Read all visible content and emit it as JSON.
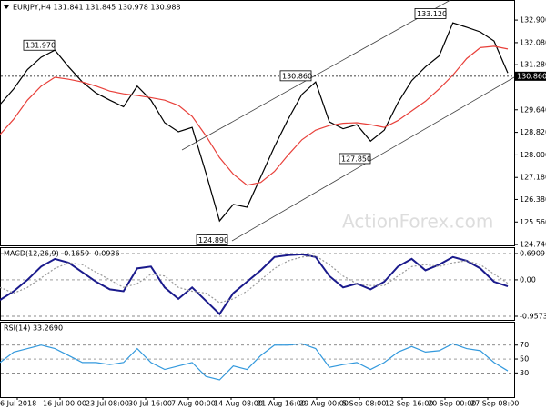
{
  "chart_data": [
    {
      "type": "line",
      "title": "EURJPY,H4 131.841 131.845 130.978 130.988",
      "ylim": [
        124.71,
        133.63
      ],
      "yticks": [
        {
          "value": 132.9,
          "label": "132.900"
        },
        {
          "value": 132.08,
          "label": "132.080"
        },
        {
          "value": 131.28,
          "label": "131.280"
        },
        {
          "value": 129.64,
          "label": "129.640"
        },
        {
          "value": 128.82,
          "label": "128.820"
        },
        {
          "value": 128.0,
          "label": "128.000"
        },
        {
          "value": 127.18,
          "label": "127.180"
        },
        {
          "value": 126.38,
          "label": "126.380"
        },
        {
          "value": 125.56,
          "label": "125.560"
        },
        {
          "value": 124.74,
          "label": "124.740"
        }
      ],
      "price_line": {
        "value": 130.86,
        "label": "130.860"
      },
      "annotations": [
        {
          "value": 131.97,
          "label": "131.970"
        },
        {
          "value": 130.86,
          "label": "130.860"
        },
        {
          "value": 133.12,
          "label": "133.120"
        },
        {
          "value": 127.85,
          "label": "127.850"
        },
        {
          "value": 124.89,
          "label": "124.890"
        }
      ],
      "watermark": "ActionForex.com",
      "x_axis_labels": [
        "6 Jul 2018",
        "16 Jul 00:00",
        "23 Jul 08:00",
        "30 Jul 16:00",
        "7 Aug 00:00",
        "14 Aug 08:00",
        "21 Aug 16:00",
        "29 Aug 00:00",
        "5 Sep 08:00",
        "12 Sep 16:00",
        "20 Sep 00:00",
        "27 Sep 08:00"
      ],
      "series": [
        {
          "name": "EURJPY",
          "color": "#000000",
          "values": [
            129.83,
            130.4,
            131.1,
            131.55,
            131.81,
            131.2,
            130.65,
            130.25,
            129.99,
            129.75,
            130.5,
            129.99,
            129.17,
            128.84,
            129.0,
            127.35,
            125.6,
            126.2,
            126.1,
            127.2,
            128.3,
            129.3,
            130.2,
            130.65,
            129.2,
            128.95,
            129.1,
            128.5,
            128.9,
            129.9,
            130.7,
            131.2,
            131.6,
            132.8,
            132.64,
            132.47,
            132.14,
            130.98
          ]
        },
        {
          "name": "MA",
          "color": "#e8403a",
          "values": [
            128.74,
            129.3,
            129.99,
            130.5,
            130.82,
            130.75,
            130.65,
            130.5,
            130.32,
            130.22,
            130.16,
            130.08,
            129.99,
            129.8,
            129.4,
            128.7,
            127.9,
            127.3,
            126.9,
            127.0,
            127.4,
            128.0,
            128.55,
            128.9,
            129.07,
            129.15,
            129.17,
            129.1,
            129.0,
            129.25,
            129.6,
            129.95,
            130.4,
            130.9,
            131.5,
            131.9,
            131.95,
            131.85
          ]
        }
      ]
    },
    {
      "type": "line",
      "title": "MACD(12,26,9) -0.1659 -0.0936",
      "ylim": [
        -1.053,
        0.858
      ],
      "yticks": [
        0.6909,
        {
          "value": 0,
          "label": "0.00"
        },
        -0.9573
      ],
      "series": [
        {
          "name": "MACD",
          "color": "#1a1a8c",
          "values": [
            -0.53,
            -0.3,
            0.0,
            0.35,
            0.55,
            0.45,
            0.2,
            -0.05,
            -0.25,
            -0.3,
            0.3,
            0.35,
            -0.2,
            -0.5,
            -0.2,
            -0.55,
            -0.9,
            -0.35,
            -0.05,
            0.25,
            0.6,
            0.65,
            0.67,
            0.6,
            0.1,
            -0.2,
            -0.1,
            -0.25,
            -0.05,
            0.35,
            0.55,
            0.25,
            0.4,
            0.6,
            0.5,
            0.3,
            -0.05,
            -0.17
          ]
        },
        {
          "name": "Signal",
          "color": "#999999",
          "values": [
            -0.2,
            -0.35,
            -0.2,
            0.05,
            0.3,
            0.45,
            0.4,
            0.2,
            0.0,
            -0.2,
            -0.1,
            0.15,
            0.1,
            -0.2,
            -0.3,
            -0.35,
            -0.6,
            -0.5,
            -0.3,
            0.0,
            0.3,
            0.5,
            0.6,
            0.63,
            0.4,
            0.1,
            -0.1,
            -0.15,
            -0.15,
            0.1,
            0.35,
            0.4,
            0.35,
            0.45,
            0.5,
            0.4,
            0.15,
            -0.09
          ]
        }
      ]
    },
    {
      "type": "line",
      "title": "RSI(14) 33.2690",
      "ylim": [
        -4.8,
        102.3
      ],
      "yticks": [
        70,
        50,
        30
      ],
      "series": [
        {
          "name": "RSI",
          "color": "#3399dd",
          "values": [
            45,
            60,
            65,
            70,
            65,
            55,
            45,
            45,
            42,
            45,
            65,
            45,
            35,
            40,
            45,
            25,
            20,
            40,
            35,
            55,
            70,
            70,
            72,
            65,
            38,
            42,
            45,
            35,
            45,
            60,
            68,
            60,
            62,
            72,
            65,
            62,
            45,
            33
          ]
        }
      ]
    }
  ]
}
